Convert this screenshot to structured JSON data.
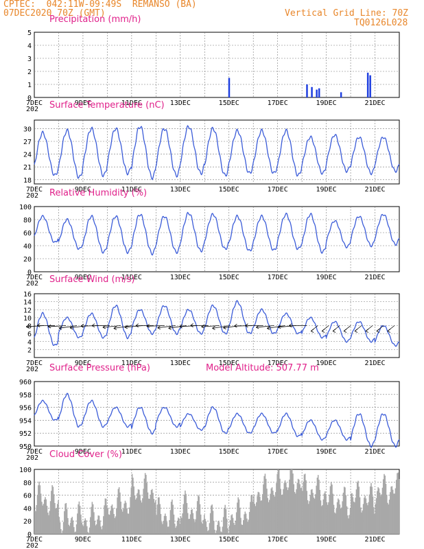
{
  "header": {
    "line1": "CPTEC:  042:11W-09:49S  REMANSO (BA)",
    "line2": "07DEC2020 70Z (GMT)",
    "right1": "Vertical Grid Line: 70Z",
    "right2": "TQ0126L028"
  },
  "colors": {
    "header": "#e8862a",
    "title": "#e0208a",
    "line": "#3a5bd8",
    "bar": "#1f3fe0",
    "cloud": "#a8a8a8",
    "wind": "#000000"
  },
  "x_axis": {
    "labels": [
      "7DEC",
      "9DEC",
      "11DEC",
      "13DEC",
      "15DEC",
      "17DEC",
      "19DEC",
      "21DEC"
    ],
    "label_days": [
      7,
      9,
      11,
      13,
      15,
      17,
      19,
      21
    ],
    "start_day": 7,
    "end_day": 22,
    "year_fragment": "202"
  },
  "chart_data": [
    {
      "type": "bar",
      "title": "Precipitation (mm/h)",
      "ylim": [
        0,
        5
      ],
      "yticks": [
        "0",
        "1",
        "2",
        "3",
        "4",
        "5"
      ],
      "series": [
        {
          "x": [
            15.0,
            18.2,
            18.4,
            18.6,
            18.7,
            19.6,
            20.7,
            20.8
          ],
          "values": [
            1.5,
            1.0,
            0.8,
            0.6,
            0.7,
            0.4,
            1.9,
            1.7
          ]
        }
      ]
    },
    {
      "type": "line",
      "title": "Surface Temperature (nC)",
      "ylim": [
        17,
        32
      ],
      "yticks": [
        "18",
        "21",
        "24",
        "27",
        "30"
      ],
      "ytick_values": [
        18,
        21,
        24,
        27,
        30
      ],
      "daily_min": [
        19,
        18.5,
        19,
        19.5,
        18.5,
        19,
        19.5,
        19,
        19.5,
        19.5,
        19,
        19.5,
        20,
        19.5,
        20
      ],
      "daily_max": [
        29,
        29.5,
        30,
        30,
        30.5,
        30,
        30.5,
        30,
        29.5,
        29.5,
        29.5,
        28,
        28.5,
        28,
        28
      ]
    },
    {
      "type": "line",
      "title": "Relative Humidity (%)",
      "ylim": [
        0,
        100
      ],
      "yticks": [
        "0",
        "20",
        "40",
        "60",
        "80",
        "100"
      ],
      "ytick_values": [
        0,
        20,
        40,
        60,
        80,
        100
      ],
      "daily_min": [
        45,
        35,
        30,
        30,
        28,
        30,
        32,
        35,
        32,
        33,
        35,
        30,
        38,
        40,
        42
      ],
      "daily_max": [
        85,
        80,
        85,
        85,
        88,
        85,
        90,
        88,
        85,
        85,
        88,
        88,
        78,
        85,
        88
      ]
    },
    {
      "type": "line",
      "title": "Surface Wind (m/s)",
      "ylim": [
        0,
        16
      ],
      "yticks": [
        "2",
        "4",
        "6",
        "8",
        "10",
        "12",
        "14",
        "16"
      ],
      "ytick_values": [
        2,
        4,
        6,
        8,
        10,
        12,
        14,
        16
      ],
      "daily_min": [
        3,
        5,
        5,
        5,
        6,
        6,
        6,
        6,
        6,
        6,
        6,
        5,
        4,
        4,
        3
      ],
      "daily_max": [
        11,
        10,
        11,
        13,
        12,
        13,
        12,
        13,
        14,
        12,
        11,
        10,
        9,
        9,
        8
      ]
    },
    {
      "type": "line",
      "title": "Surface Pressure (hPa)",
      "annotation": "Model Altitude: 507.77 m",
      "ylim": [
        950,
        960
      ],
      "yticks": [
        "950",
        "952",
        "954",
        "956",
        "958",
        "960"
      ],
      "ytick_values": [
        950,
        952,
        954,
        956,
        958,
        960
      ],
      "daily_min": [
        954,
        953,
        953,
        953,
        952,
        953,
        952.5,
        952,
        952,
        952,
        951.5,
        951,
        951,
        950,
        950
      ],
      "daily_max": [
        957,
        958,
        957,
        956,
        956,
        956,
        955,
        956,
        955,
        955,
        955,
        954,
        954,
        955,
        955
      ]
    },
    {
      "type": "bar",
      "title": "Cloud Cover (%)",
      "ylim": [
        0,
        100
      ],
      "yticks": [
        "0",
        "20",
        "40",
        "60",
        "80",
        "100"
      ],
      "daily_mean": [
        60,
        35,
        30,
        40,
        55,
        20,
        40,
        30,
        40,
        65,
        70,
        55,
        50,
        65,
        80
      ]
    }
  ]
}
